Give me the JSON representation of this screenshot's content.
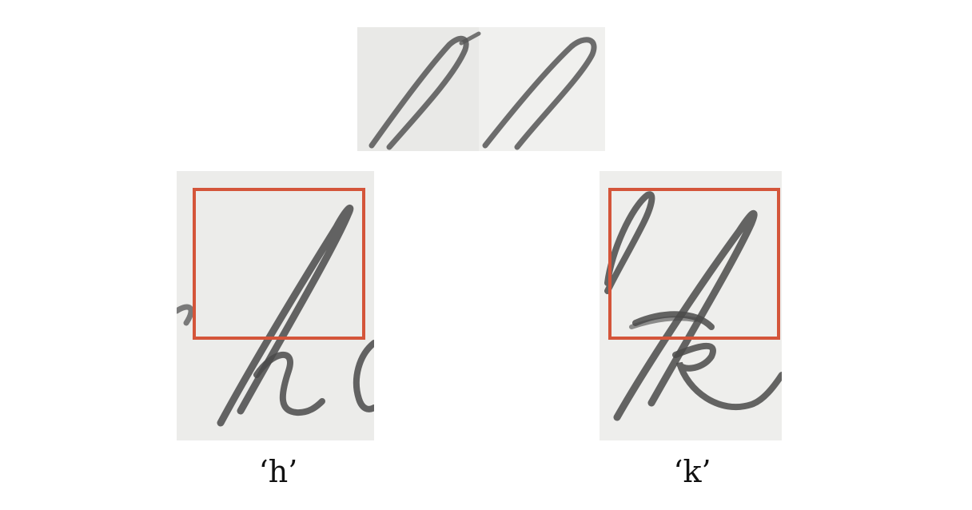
{
  "figure": {
    "box_color": "#d4553a",
    "paper_color": "#ececea",
    "ink_color": "#4a4a4a"
  },
  "panels": {
    "top": {
      "content": "ascender-strokes"
    },
    "left": {
      "caption": "‘h’"
    },
    "right": {
      "caption": "‘k’"
    }
  }
}
